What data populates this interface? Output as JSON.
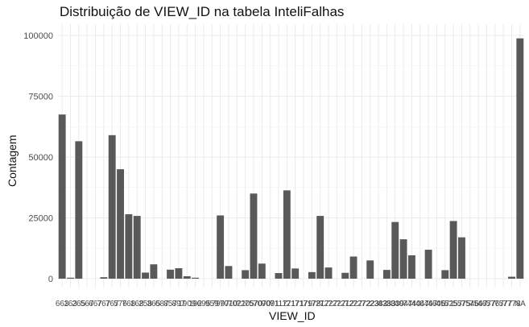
{
  "chart_data": {
    "type": "bar",
    "title": "Distribuição de VIEW_ID na tabela InteliFalhas",
    "xlabel": "VIEW_ID",
    "ylabel": "Contagem",
    "ylim": [
      0,
      104000
    ],
    "yticks": [
      0,
      25000,
      50000,
      75000,
      100000
    ],
    "ytick_labels": [
      "0",
      "25000",
      "50000",
      "75000",
      "100000"
    ],
    "grid": true,
    "bar_color": "#595959",
    "categories": [
      "663",
      "163",
      "265",
      "567",
      "667",
      "767",
      "767",
      "576",
      "768",
      "168",
      "258",
      "365",
      "687",
      "857",
      "897",
      "1909",
      "192",
      "695",
      "959",
      "7997",
      "7010",
      "7021",
      "7205",
      "7570",
      "7070",
      "9091",
      "7117",
      "1171",
      "2171",
      "7179",
      "7178",
      "7217",
      "7227",
      "7227",
      "7212",
      "7227",
      "7272",
      "7223",
      "2382",
      "4383",
      "3839",
      "4047",
      "7440",
      "4447",
      "6467",
      "4606",
      "4571",
      "5257",
      "5575",
      "7546",
      "7567",
      "4677",
      "5767",
      "7577",
      "7778",
      "NA"
    ],
    "values": [
      67500,
      400,
      56500,
      0,
      0,
      600,
      59000,
      45000,
      26500,
      25800,
      2500,
      5900,
      0,
      3700,
      4300,
      1000,
      400,
      0,
      0,
      26000,
      5200,
      0,
      3500,
      35000,
      6200,
      0,
      2300,
      36300,
      4200,
      0,
      2700,
      25800,
      4600,
      0,
      2400,
      9100,
      0,
      7500,
      0,
      3600,
      23300,
      16200,
      9600,
      0,
      11900,
      0,
      3500,
      23700,
      17000,
      0,
      0,
      0,
      0,
      0,
      800,
      98800
    ]
  }
}
